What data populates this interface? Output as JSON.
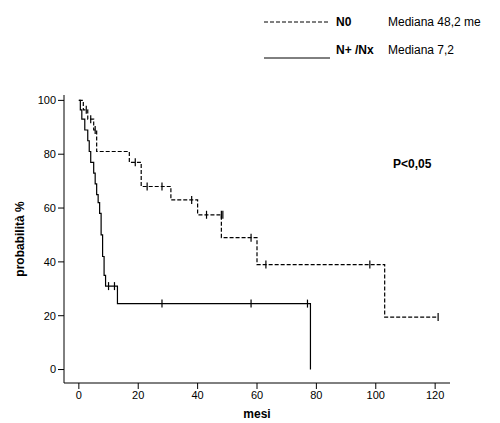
{
  "chart_data": {
    "type": "line",
    "x_label": "mesi",
    "y_label": "probabilità %",
    "annotation": "P<0,05",
    "xlim": [
      -5,
      125
    ],
    "xticks": [
      0,
      20,
      40,
      60,
      80,
      100,
      120
    ],
    "ylim": [
      -5,
      102
    ],
    "yticks": [
      0,
      20,
      40,
      60,
      80,
      100
    ],
    "grid": false,
    "legend": "upper right",
    "series": [
      {
        "name": "N0",
        "median_label": "Mediana 48,2 me",
        "color": "#000000",
        "line_style": "dashed",
        "marker": "censor",
        "x": [
          0,
          1.5,
          3,
          5,
          6,
          17,
          21,
          31,
          40,
          48,
          60,
          103,
          121
        ],
        "values": [
          100,
          96.5,
          93,
          89,
          81,
          77,
          68,
          63,
          57.5,
          49,
          39,
          19.5,
          19.5
        ],
        "censor_x": [
          2.5,
          4,
          5.5,
          19,
          23,
          28,
          38,
          43,
          48,
          48.5,
          58,
          63,
          98,
          121
        ],
        "censor_values": [
          96.5,
          93,
          89,
          77,
          68,
          68,
          63,
          57.5,
          57.5,
          57.5,
          49,
          39,
          39,
          19.5
        ]
      },
      {
        "name": "N+ /Nx",
        "median_label": "Mediana 7,2",
        "color": "#000000",
        "line_style": "solid",
        "marker": "censor",
        "x": [
          0,
          0.5,
          1,
          2,
          3,
          3.5,
          4,
          5,
          5.5,
          6,
          6.5,
          7,
          7.5,
          8,
          8.5,
          9,
          13,
          78
        ],
        "values": [
          100,
          96.5,
          93,
          89,
          85,
          81,
          77,
          73,
          69,
          65,
          62,
          58,
          50,
          42,
          35,
          31,
          24.5,
          0
        ],
        "censor_x": [
          10,
          12,
          28,
          58,
          77
        ],
        "censor_values": [
          31,
          31,
          24.5,
          24.5,
          24.5
        ]
      }
    ]
  }
}
